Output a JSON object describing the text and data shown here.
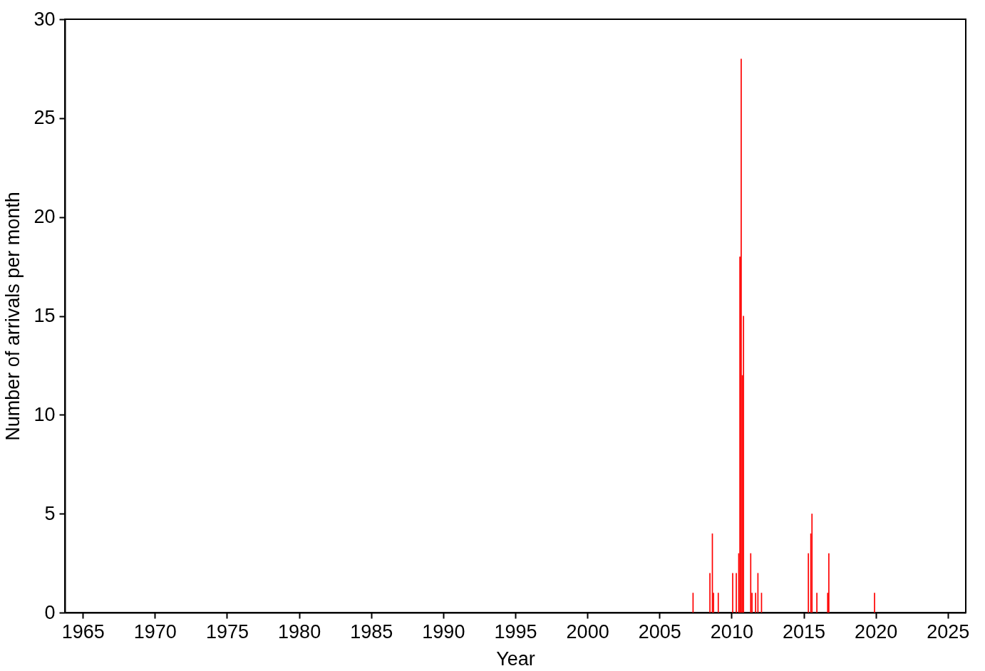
{
  "chart_data": {
    "type": "bar",
    "xlabel": "Year",
    "ylabel": "Number of arrivals per month",
    "x": [
      2007.33,
      2008.5,
      2008.67,
      2008.75,
      2009.08,
      2010.08,
      2010.33,
      2010.5,
      2010.58,
      2010.67,
      2010.75,
      2010.83,
      2011.33,
      2011.42,
      2011.67,
      2011.83,
      2012.08,
      2015.33,
      2015.5,
      2015.58,
      2015.92,
      2016.67,
      2016.75,
      2019.92
    ],
    "series": [
      {
        "color": "#ff0000",
        "values": [
          1,
          2,
          4,
          1,
          1,
          2,
          2,
          3,
          18,
          28,
          12,
          15,
          3,
          1,
          1,
          2,
          1,
          3,
          4,
          5,
          1,
          1,
          3,
          1
        ]
      }
    ],
    "xlim": [
      1964,
      2026
    ],
    "xticks": [
      1965,
      1970,
      1975,
      1980,
      1985,
      1990,
      1995,
      2000,
      2005,
      2010,
      2015,
      2020,
      2025
    ],
    "ylim": [
      0,
      30
    ],
    "yticks": [
      0,
      5,
      10,
      15,
      20,
      25,
      30
    ],
    "grid": false
  }
}
